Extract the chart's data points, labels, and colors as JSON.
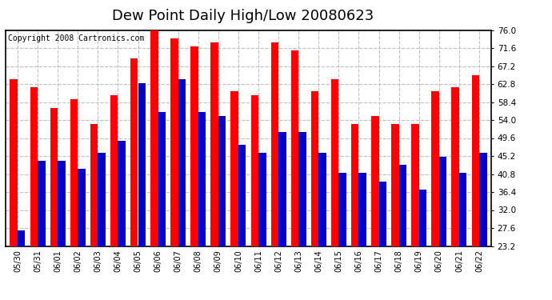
{
  "title": "Dew Point Daily High/Low 20080623",
  "copyright": "Copyright 2008 Cartronics.com",
  "dates": [
    "05/30",
    "05/31",
    "06/01",
    "06/02",
    "06/03",
    "06/04",
    "06/05",
    "06/06",
    "06/07",
    "06/08",
    "06/09",
    "06/10",
    "06/11",
    "06/12",
    "06/13",
    "06/14",
    "06/15",
    "06/16",
    "06/17",
    "06/18",
    "06/19",
    "06/20",
    "06/21",
    "06/22"
  ],
  "highs": [
    64.0,
    62.0,
    57.0,
    59.0,
    53.0,
    60.0,
    69.0,
    76.0,
    74.0,
    72.0,
    73.0,
    61.0,
    60.0,
    73.0,
    71.0,
    61.0,
    64.0,
    53.0,
    55.0,
    53.0,
    53.0,
    61.0,
    62.0,
    65.0
  ],
  "lows": [
    27.0,
    44.0,
    44.0,
    42.0,
    46.0,
    49.0,
    63.0,
    56.0,
    64.0,
    56.0,
    55.0,
    48.0,
    46.0,
    51.0,
    51.0,
    46.0,
    41.0,
    41.0,
    39.0,
    43.0,
    37.0,
    45.0,
    41.0,
    46.0
  ],
  "high_color": "#ff0000",
  "low_color": "#0000cc",
  "background_color": "#ffffff",
  "plot_bg_color": "#ffffff",
  "grid_color": "#c0c0c0",
  "ymin": 23.2,
  "ymax": 76.0,
  "yticks": [
    23.2,
    27.6,
    32.0,
    36.4,
    40.8,
    45.2,
    49.6,
    54.0,
    58.4,
    62.8,
    67.2,
    71.6,
    76.0
  ],
  "title_fontsize": 13,
  "copyright_fontsize": 7,
  "bar_width": 0.38
}
